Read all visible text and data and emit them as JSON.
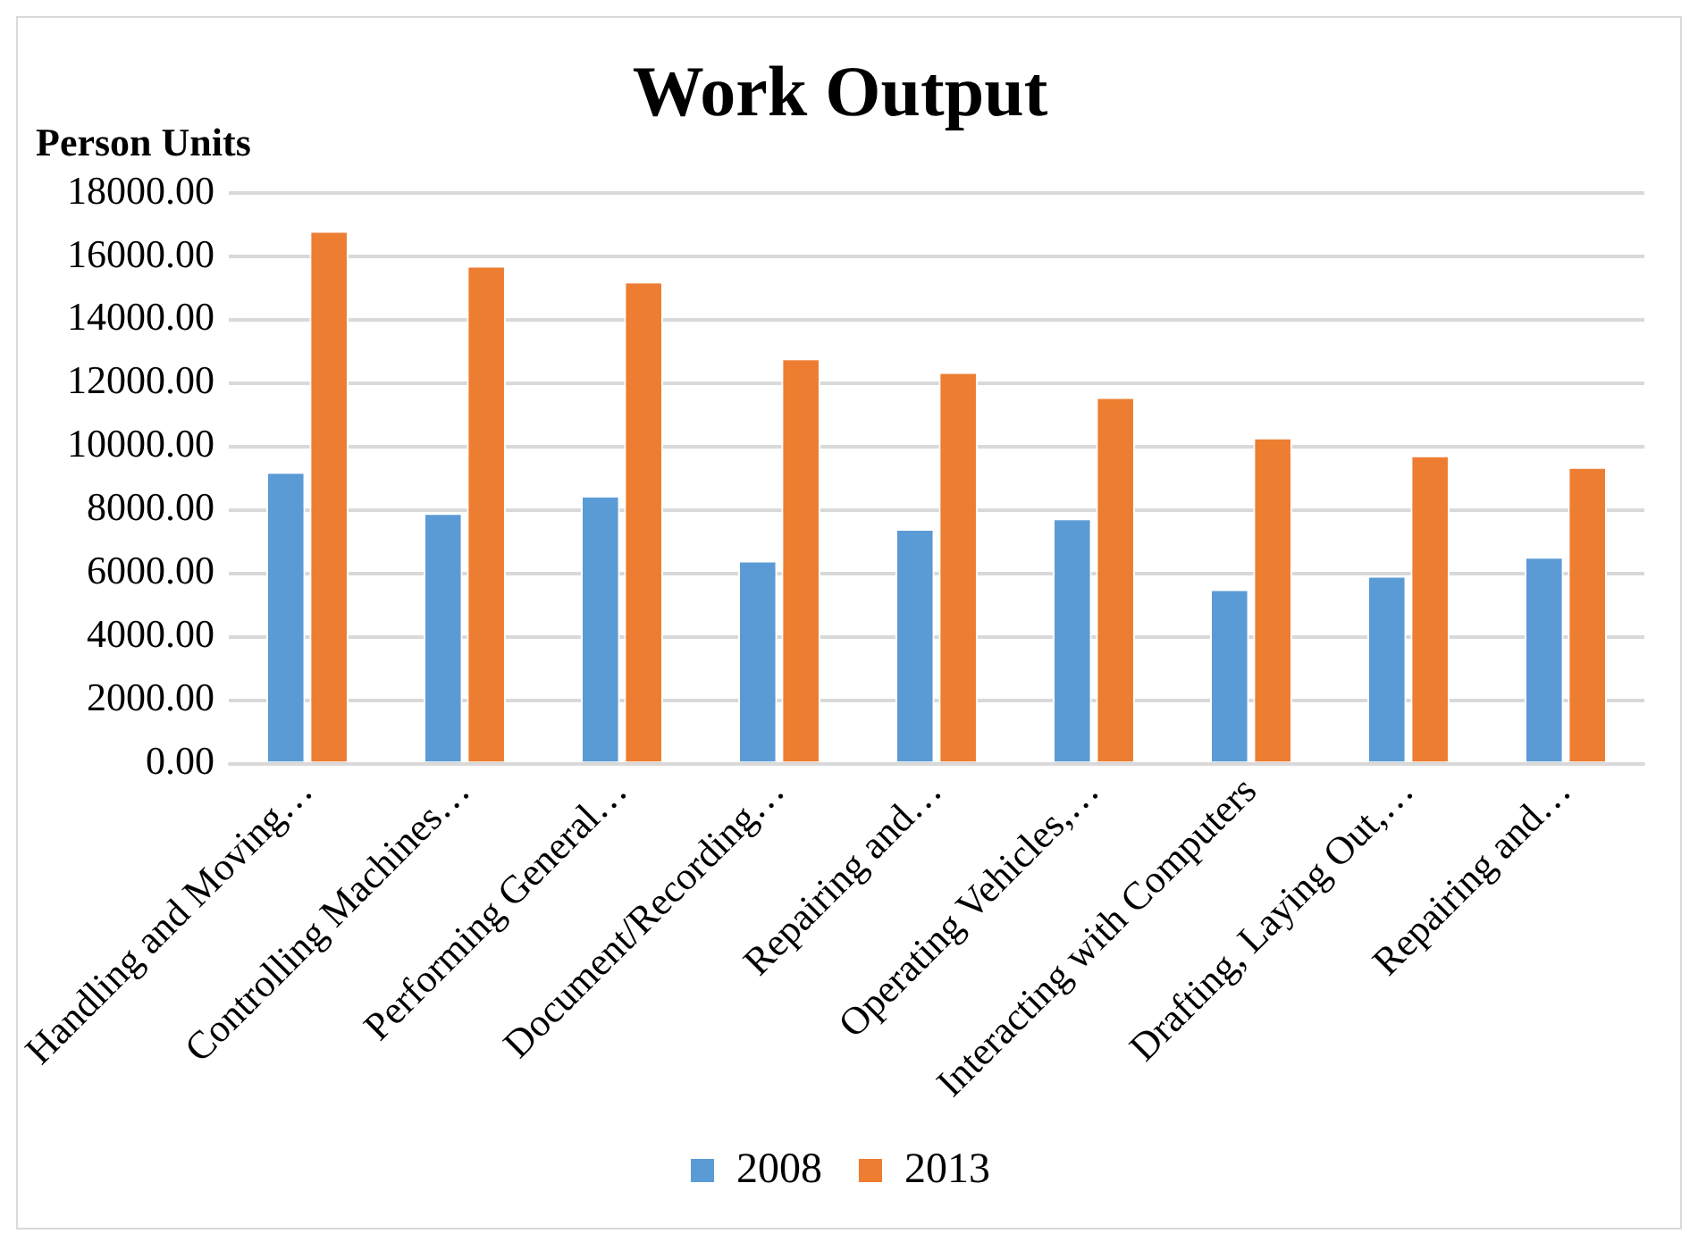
{
  "chart_data": {
    "type": "bar",
    "title": "Work Output",
    "ylabel": "Person Units",
    "categories": [
      "Handling and Moving…",
      "Controlling Machines…",
      "Performing General…",
      "Document/Recording…",
      "Repairing and…",
      "Operating Vehicles,…",
      "Interacting with Computers",
      "Drafting, Laying Out,…",
      "Repairing and…"
    ],
    "series": [
      {
        "name": "2008",
        "color": "#5b9bd5",
        "values": [
          9200,
          7900,
          8450,
          6400,
          7400,
          7730,
          5500,
          5920,
          6520
        ]
      },
      {
        "name": "2013",
        "color": "#ed7d31",
        "values": [
          16800,
          15700,
          15200,
          12780,
          12350,
          11560,
          10280,
          9720,
          9350
        ]
      }
    ],
    "ylim": [
      0,
      18000
    ],
    "yticks": [
      {
        "value": 0,
        "label": "0.00"
      },
      {
        "value": 2000,
        "label": "2000.00"
      },
      {
        "value": 4000,
        "label": "4000.00"
      },
      {
        "value": 6000,
        "label": "6000.00"
      },
      {
        "value": 8000,
        "label": "8000.00"
      },
      {
        "value": 10000,
        "label": "10000.00"
      },
      {
        "value": 12000,
        "label": "12000.00"
      },
      {
        "value": 14000,
        "label": "14000.00"
      },
      {
        "value": 16000,
        "label": "16000.00"
      },
      {
        "value": 18000,
        "label": "18000.00"
      }
    ],
    "grid": "y",
    "legend": "bottom"
  }
}
